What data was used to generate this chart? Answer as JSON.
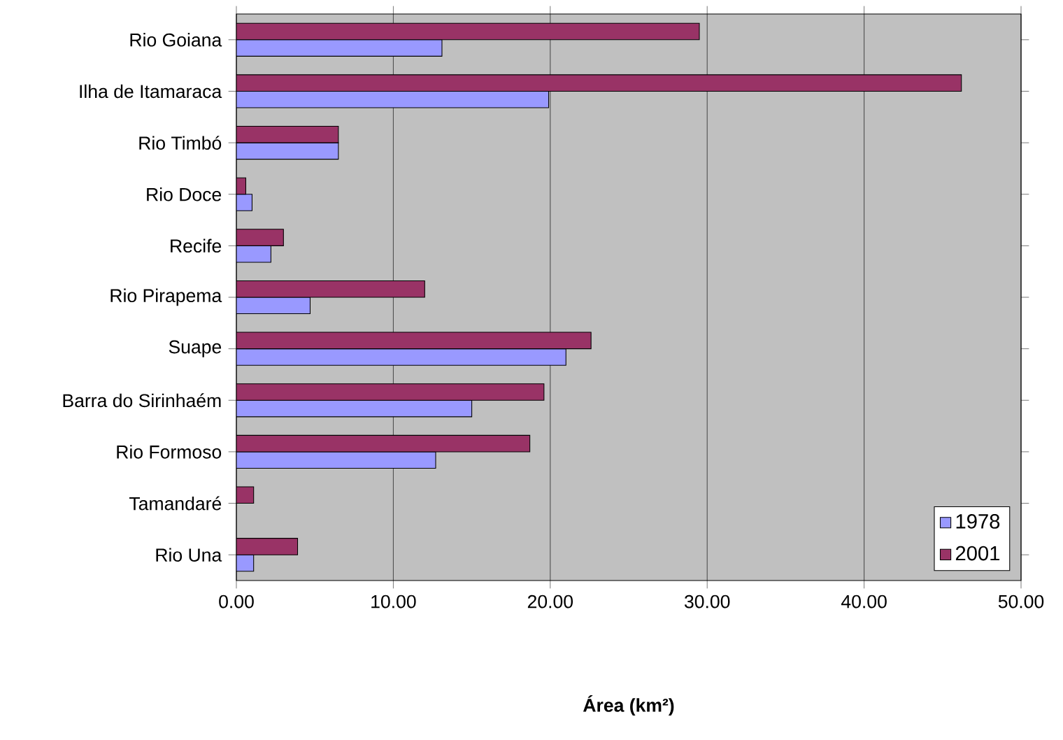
{
  "chart_data": {
    "type": "bar",
    "orientation": "horizontal",
    "xlabel": "Área (km²)",
    "categories": [
      "Rio Goiana",
      "Ilha de Itamaraca",
      "Rio Timbó",
      "Rio Doce",
      "Recife",
      "Rio Pirapema",
      "Suape",
      "Barra do Sirinhaém",
      "Rio Formoso",
      "Tamandaré",
      "Rio Una"
    ],
    "series": [
      {
        "name": "1978",
        "color": "#9999ff",
        "values": [
          13.1,
          19.9,
          6.5,
          1.0,
          2.2,
          4.7,
          21.0,
          15.0,
          12.7,
          null,
          1.1
        ]
      },
      {
        "name": "2001",
        "color": "#993366",
        "values": [
          29.5,
          46.2,
          6.5,
          0.6,
          3.0,
          12.0,
          22.6,
          19.6,
          18.7,
          1.1,
          3.9
        ]
      }
    ],
    "xlim": [
      0,
      50
    ],
    "xticks": [
      {
        "value": 0,
        "label": "0.00"
      },
      {
        "value": 10,
        "label": "10.00"
      },
      {
        "value": 20,
        "label": "20.00"
      },
      {
        "value": 30,
        "label": "30.00"
      },
      {
        "value": 40,
        "label": "40.00"
      },
      {
        "value": 50,
        "label": "50.00"
      }
    ],
    "grid": "x",
    "legend": "bottom right"
  }
}
